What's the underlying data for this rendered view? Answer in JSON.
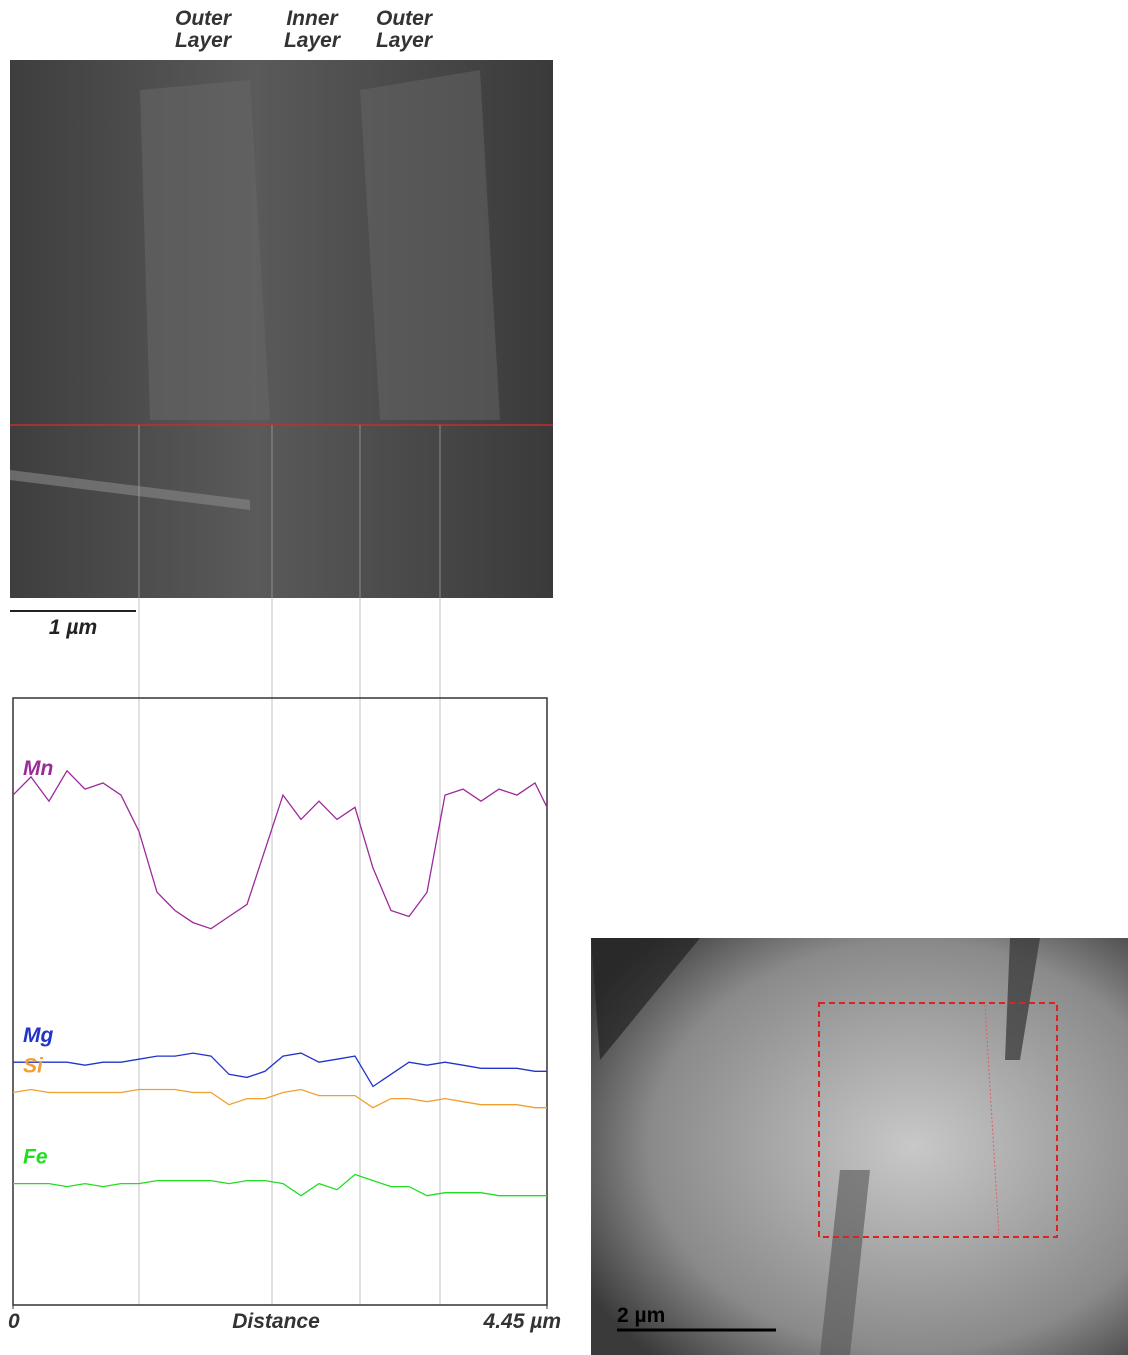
{
  "chart_data": {
    "type": "line",
    "x_label": "Distance",
    "xlim": [
      0,
      4.45
    ],
    "xticks": [
      0,
      {
        "value": 4.45,
        "label": "4.45 µm"
      }
    ],
    "ylim": [
      0,
      100
    ],
    "x": [
      0,
      0.15,
      0.3,
      0.45,
      0.6,
      0.75,
      0.9,
      1.05,
      1.2,
      1.35,
      1.5,
      1.65,
      1.8,
      1.95,
      2.1,
      2.25,
      2.4,
      2.55,
      2.7,
      2.85,
      3.0,
      3.15,
      3.3,
      3.45,
      3.6,
      3.75,
      3.9,
      4.05,
      4.2,
      4.35,
      4.45
    ],
    "series": [
      {
        "name": "Mn",
        "color": "#9b2a9b",
        "values": [
          84,
          87,
          83,
          88,
          85,
          86,
          84,
          78,
          68,
          65,
          63,
          62,
          64,
          66,
          75,
          84,
          80,
          83,
          80,
          82,
          72,
          65,
          64,
          68,
          84,
          85,
          83,
          85,
          84,
          86,
          82
        ]
      },
      {
        "name": "Mg",
        "color": "#2233cc",
        "values": [
          40,
          40,
          40,
          40,
          39.5,
          40,
          40,
          40.5,
          41,
          41,
          41.5,
          41,
          38,
          37.5,
          38.5,
          41,
          41.5,
          40,
          40.5,
          41,
          36,
          38,
          40,
          39.5,
          40,
          39.5,
          39,
          39,
          39,
          38.5,
          38.5
        ]
      },
      {
        "name": "Si",
        "color": "#f0a030",
        "values": [
          35,
          35.5,
          35,
          35,
          35,
          35,
          35,
          35.5,
          35.5,
          35.5,
          35,
          35,
          33,
          34,
          34,
          35,
          35.5,
          34.5,
          34.5,
          34.5,
          32.5,
          34,
          34,
          33.5,
          34,
          33.5,
          33,
          33,
          33,
          32.5,
          32.5
        ]
      },
      {
        "name": "Fe",
        "color": "#22dd22",
        "values": [
          20,
          20,
          20,
          19.5,
          20,
          19.5,
          20,
          20,
          20.5,
          20.5,
          20.5,
          20.5,
          20,
          20.5,
          20.5,
          20,
          18,
          20,
          19,
          21.5,
          20.5,
          19.5,
          19.5,
          18,
          18.5,
          18.5,
          18.5,
          18,
          18,
          18,
          18
        ]
      }
    ]
  },
  "annotations": {
    "layers": [
      "Outer Layer",
      "Inner Layer",
      "Outer Layer"
    ],
    "scale_bar_top": "1 µm",
    "scale_bar_bottom": "2 µm"
  }
}
